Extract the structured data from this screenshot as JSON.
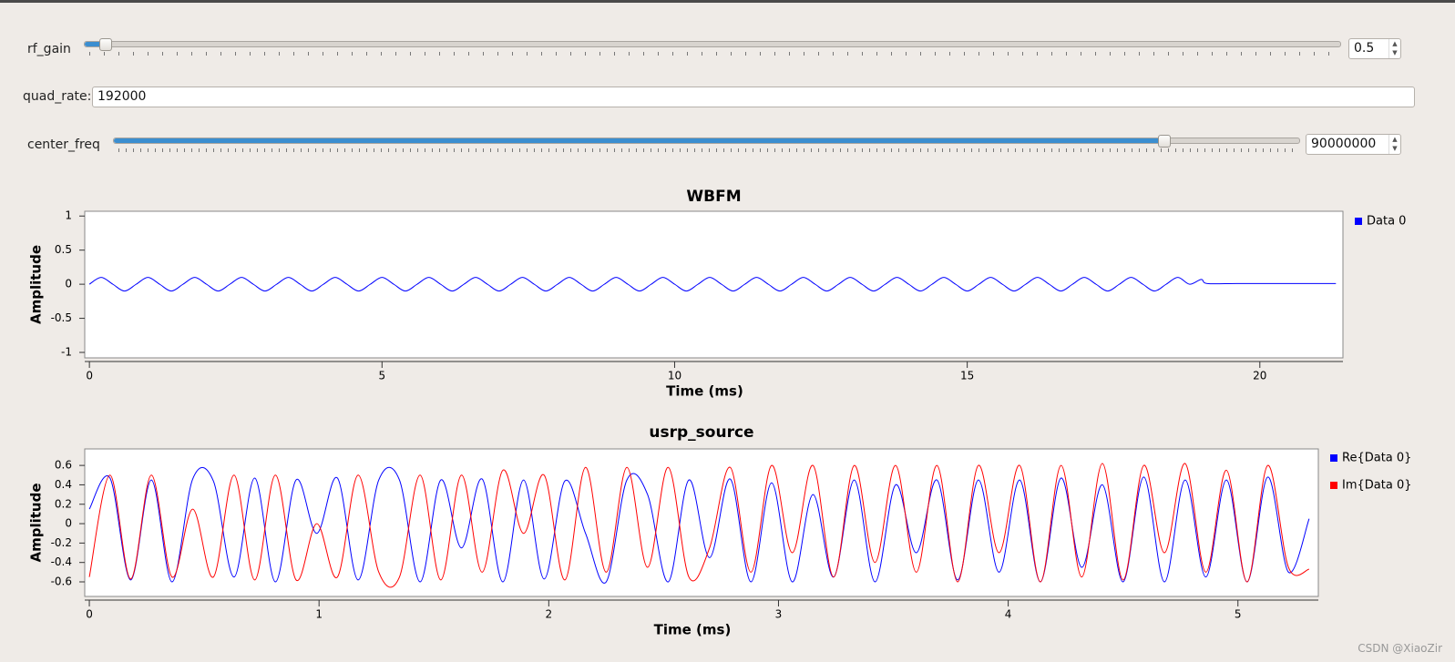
{
  "controls": {
    "rf_gain": {
      "label": "rf_gain",
      "value": "0.5"
    },
    "quad_rate": {
      "label": "quad_rate:",
      "value": "192000"
    },
    "center_freq": {
      "label": "center_freq",
      "value": "90000000"
    }
  },
  "watermark": "CSDN @XiaoZir",
  "chart_data": [
    {
      "type": "line",
      "title": "WBFM",
      "x_label": "Time (ms)",
      "y_label": "Amplitude",
      "xlim": [
        -0.08,
        21.42
      ],
      "ylim": [
        -1.08,
        1.07
      ],
      "xticks": [
        0,
        5,
        10,
        15,
        20
      ],
      "yticks": [
        -1,
        -0.5,
        0,
        0.5,
        1
      ],
      "legend": "right",
      "x": [
        0,
        0.2,
        0.4,
        0.6,
        0.8,
        1,
        1.2,
        1.4,
        1.6,
        1.8,
        2,
        2.2,
        2.4,
        2.6,
        2.8,
        3,
        3.2,
        3.4,
        3.6,
        3.8,
        4,
        4.2,
        4.4,
        4.6,
        4.8,
        5,
        5.2,
        5.4,
        5.6,
        5.8,
        6,
        6.2,
        6.4,
        6.6,
        6.8,
        7,
        7.2,
        7.4,
        7.6,
        7.8,
        8,
        8.2,
        8.4,
        8.6,
        8.8,
        9,
        9.2,
        9.4,
        9.6,
        9.8,
        10,
        10.2,
        10.4,
        10.6,
        10.8,
        11,
        11.2,
        11.4,
        11.6,
        11.8,
        12,
        12.2,
        12.4,
        12.6,
        12.8,
        13,
        13.2,
        13.4,
        13.6,
        13.8,
        14,
        14.2,
        14.4,
        14.6,
        14.8,
        15,
        15.2,
        15.4,
        15.6,
        15.8,
        16,
        16.2,
        16.4,
        16.6,
        16.8,
        17,
        17.2,
        17.4,
        17.6,
        17.8,
        18,
        18.2,
        18.4,
        18.6,
        18.8,
        19,
        19.1,
        19.6,
        20.2,
        20.8,
        21.3
      ],
      "series": [
        {
          "name": "Data 0",
          "color": "#0000ff",
          "values": [
            0,
            0.1,
            0,
            -0.1,
            0,
            0.1,
            0,
            -0.1,
            0,
            0.1,
            0,
            -0.1,
            0,
            0.1,
            0,
            -0.1,
            0,
            0.1,
            0,
            -0.1,
            0,
            0.1,
            0,
            -0.1,
            0,
            0.1,
            0,
            -0.1,
            0,
            0.1,
            0,
            -0.1,
            0,
            0.1,
            0,
            -0.1,
            0,
            0.1,
            0,
            -0.1,
            0,
            0.1,
            0,
            -0.1,
            0,
            0.1,
            0,
            -0.1,
            0,
            0.1,
            0,
            -0.1,
            0,
            0.1,
            0,
            -0.1,
            0,
            0.1,
            0,
            -0.1,
            0,
            0.1,
            0,
            -0.1,
            0,
            0.1,
            0,
            -0.1,
            0,
            0.1,
            0,
            -0.1,
            0,
            0.1,
            0,
            -0.1,
            0,
            0.1,
            0,
            -0.1,
            0,
            0.1,
            0,
            -0.1,
            0,
            0.1,
            0,
            -0.1,
            0,
            0.1,
            0,
            -0.1,
            0,
            0.1,
            0,
            0.07,
            0.01,
            0.01,
            0.01,
            0.01,
            0.01
          ]
        }
      ]
    },
    {
      "type": "line",
      "title": "usrp_source",
      "x_label": "Time (ms)",
      "y_label": "Amplitude",
      "xlim": [
        -0.02,
        5.35
      ],
      "ylim": [
        -0.75,
        0.77
      ],
      "xticks": [
        0,
        1,
        2,
        3,
        4,
        5
      ],
      "yticks": [
        -0.6,
        -0.4,
        -0.2,
        0,
        0.2,
        0.4,
        0.6
      ],
      "legend": "right",
      "x": [
        0,
        0.09,
        0.18,
        0.27,
        0.36,
        0.45,
        0.54,
        0.63,
        0.72,
        0.81,
        0.9,
        0.99,
        1.08,
        1.17,
        1.26,
        1.35,
        1.44,
        1.53,
        1.62,
        1.71,
        1.8,
        1.89,
        1.98,
        2.07,
        2.16,
        2.25,
        2.34,
        2.43,
        2.52,
        2.61,
        2.7,
        2.79,
        2.88,
        2.97,
        3.06,
        3.15,
        3.24,
        3.33,
        3.42,
        3.51,
        3.6,
        3.69,
        3.78,
        3.87,
        3.96,
        4.05,
        4.14,
        4.23,
        4.32,
        4.41,
        4.5,
        4.59,
        4.68,
        4.77,
        4.86,
        4.95,
        5.04,
        5.13,
        5.22,
        5.31
      ],
      "series": [
        {
          "name": "Re{Data 0}",
          "color": "#0000ff",
          "values": [
            0.15,
            0.47,
            -0.58,
            0.45,
            -0.6,
            0.46,
            0.44,
            -0.55,
            0.47,
            -0.6,
            0.45,
            -0.1,
            0.47,
            -0.58,
            0.45,
            0.45,
            -0.6,
            0.45,
            -0.25,
            0.46,
            -0.6,
            0.45,
            -0.57,
            0.44,
            -0.1,
            -0.6,
            0.45,
            0.3,
            -0.6,
            0.45,
            -0.35,
            0.46,
            -0.6,
            0.42,
            -0.6,
            0.3,
            -0.55,
            0.45,
            -0.6,
            0.4,
            -0.3,
            0.45,
            -0.58,
            0.45,
            -0.5,
            0.45,
            -0.6,
            0.47,
            -0.45,
            0.4,
            -0.6,
            0.48,
            -0.6,
            0.45,
            -0.55,
            0.45,
            -0.6,
            0.48,
            -0.5,
            0.05
          ]
        },
        {
          "name": "Im{Data 0}",
          "color": "#ff0000",
          "values": [
            -0.55,
            0.5,
            -0.57,
            0.5,
            -0.55,
            0.15,
            -0.55,
            0.5,
            -0.58,
            0.5,
            -0.58,
            0.0,
            -0.55,
            0.5,
            -0.5,
            -0.55,
            0.5,
            -0.58,
            0.5,
            -0.5,
            0.55,
            -0.1,
            0.5,
            -0.58,
            0.58,
            -0.5,
            0.58,
            -0.45,
            0.58,
            -0.55,
            -0.25,
            0.58,
            -0.5,
            0.6,
            -0.3,
            0.6,
            -0.55,
            0.6,
            -0.4,
            0.6,
            -0.5,
            0.6,
            -0.6,
            0.6,
            -0.3,
            0.6,
            -0.6,
            0.6,
            -0.55,
            0.62,
            -0.58,
            0.6,
            -0.3,
            0.62,
            -0.5,
            0.55,
            -0.6,
            0.6,
            -0.45,
            -0.47
          ]
        }
      ]
    }
  ]
}
